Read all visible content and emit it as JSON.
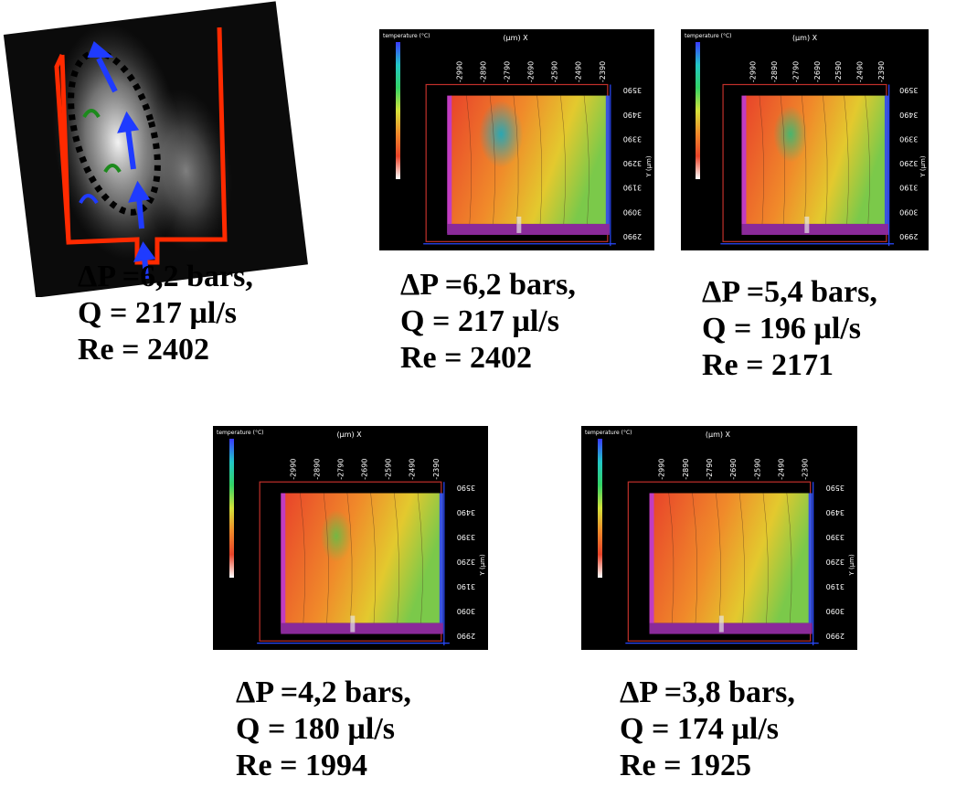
{
  "figure": {
    "flow_image": {
      "caption": {
        "dp": "ΔP =6,2 bars,",
        "q": "Q = 217 µl/s",
        "re": "Re = 2402"
      }
    },
    "maps": [
      {
        "header_label": "temperature (°C)",
        "x_axis_label": "(µm) X",
        "y_axis_label": "Y (µm)",
        "x_ticks": [
          "-2990",
          "-2890",
          "-2790",
          "-2690",
          "-2590",
          "-2490",
          "-2390"
        ],
        "y_ticks": [
          "3590",
          "3490",
          "3390",
          "3290",
          "3190",
          "3090",
          "2990"
        ],
        "caption": {
          "dp": "ΔP =6,2 bars,",
          "q": "Q = 217 µl/s",
          "re": "Re = 2402"
        }
      },
      {
        "header_label": "temperature (°C)",
        "x_axis_label": "(µm) X",
        "y_axis_label": "Y (µm)",
        "x_ticks": [
          "-2990",
          "-2890",
          "-2790",
          "-2690",
          "-2590",
          "-2490",
          "-2390"
        ],
        "y_ticks": [
          "3590",
          "3490",
          "3390",
          "3290",
          "3190",
          "3090",
          "2990"
        ],
        "caption": {
          "dp": "ΔP =5,4 bars,",
          "q": "Q = 196 µl/s",
          "re": "Re = 2171"
        }
      },
      {
        "header_label": "temperature (°C)",
        "x_axis_label": "(µm) X",
        "y_axis_label": "Y (µm)",
        "x_ticks": [
          "-2990",
          "-2890",
          "-2790",
          "-2690",
          "-2590",
          "-2490",
          "-2390"
        ],
        "y_ticks": [
          "3590",
          "3490",
          "3390",
          "3290",
          "3190",
          "3090",
          "2990"
        ],
        "caption": {
          "dp": "ΔP =4,2 bars,",
          "q": "Q = 180 µl/s",
          "re": "Re = 1994"
        }
      },
      {
        "header_label": "temperature (°C)",
        "x_axis_label": "(µm) X",
        "y_axis_label": "Y (µm)",
        "x_ticks": [
          "-2990",
          "-2890",
          "-2790",
          "-2690",
          "-2590",
          "-2490",
          "-2390"
        ],
        "y_ticks": [
          "3590",
          "3490",
          "3390",
          "3290",
          "3190",
          "3090",
          "2990"
        ],
        "caption": {
          "dp": "ΔP =3,8 bars,",
          "q": "Q = 174 µl/s",
          "re": "Re = 1925"
        }
      }
    ]
  }
}
